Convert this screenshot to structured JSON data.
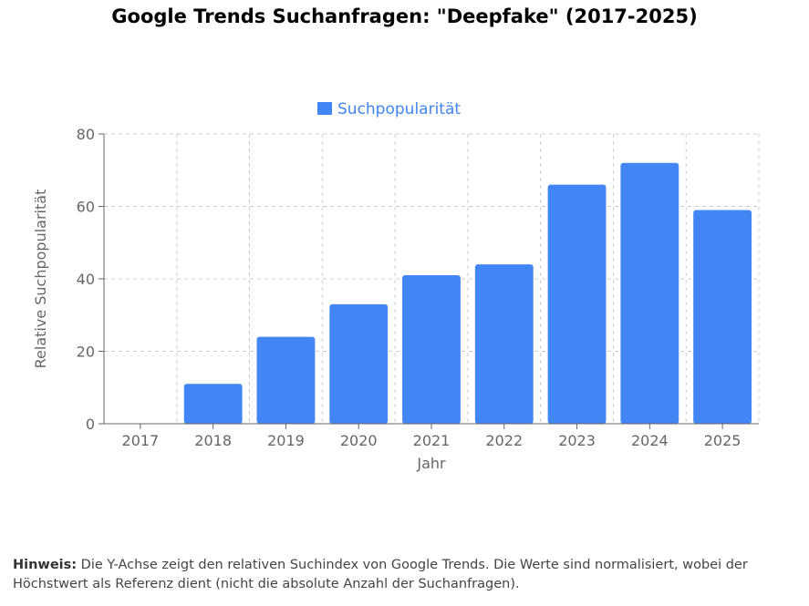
{
  "title": "Google Trends Suchanfragen: \"Deepfake\" (2017-2025)",
  "note": {
    "label": "Hinweis:",
    "text": " Die Y-Achse zeigt den relativen Suchindex von Google Trends. Die Werte sind normalisiert, wobei der Höchstwert als Referenz dient (nicht die absolute Anzahl der Suchanfragen)."
  },
  "chart_data": {
    "type": "bar",
    "categories": [
      "2017",
      "2018",
      "2019",
      "2020",
      "2021",
      "2022",
      "2023",
      "2024",
      "2025"
    ],
    "series": [
      {
        "name": "Suchpopularität",
        "values": [
          0,
          11,
          24,
          33,
          41,
          44,
          66,
          72,
          59
        ],
        "color": "#4285F4"
      }
    ],
    "xlabel": "Jahr",
    "ylabel": "Relative Suchpopularität",
    "ylim": [
      0,
      80
    ],
    "yticks": [
      0,
      20,
      40,
      60,
      80
    ],
    "grid": true,
    "legend_position": "top-center"
  }
}
